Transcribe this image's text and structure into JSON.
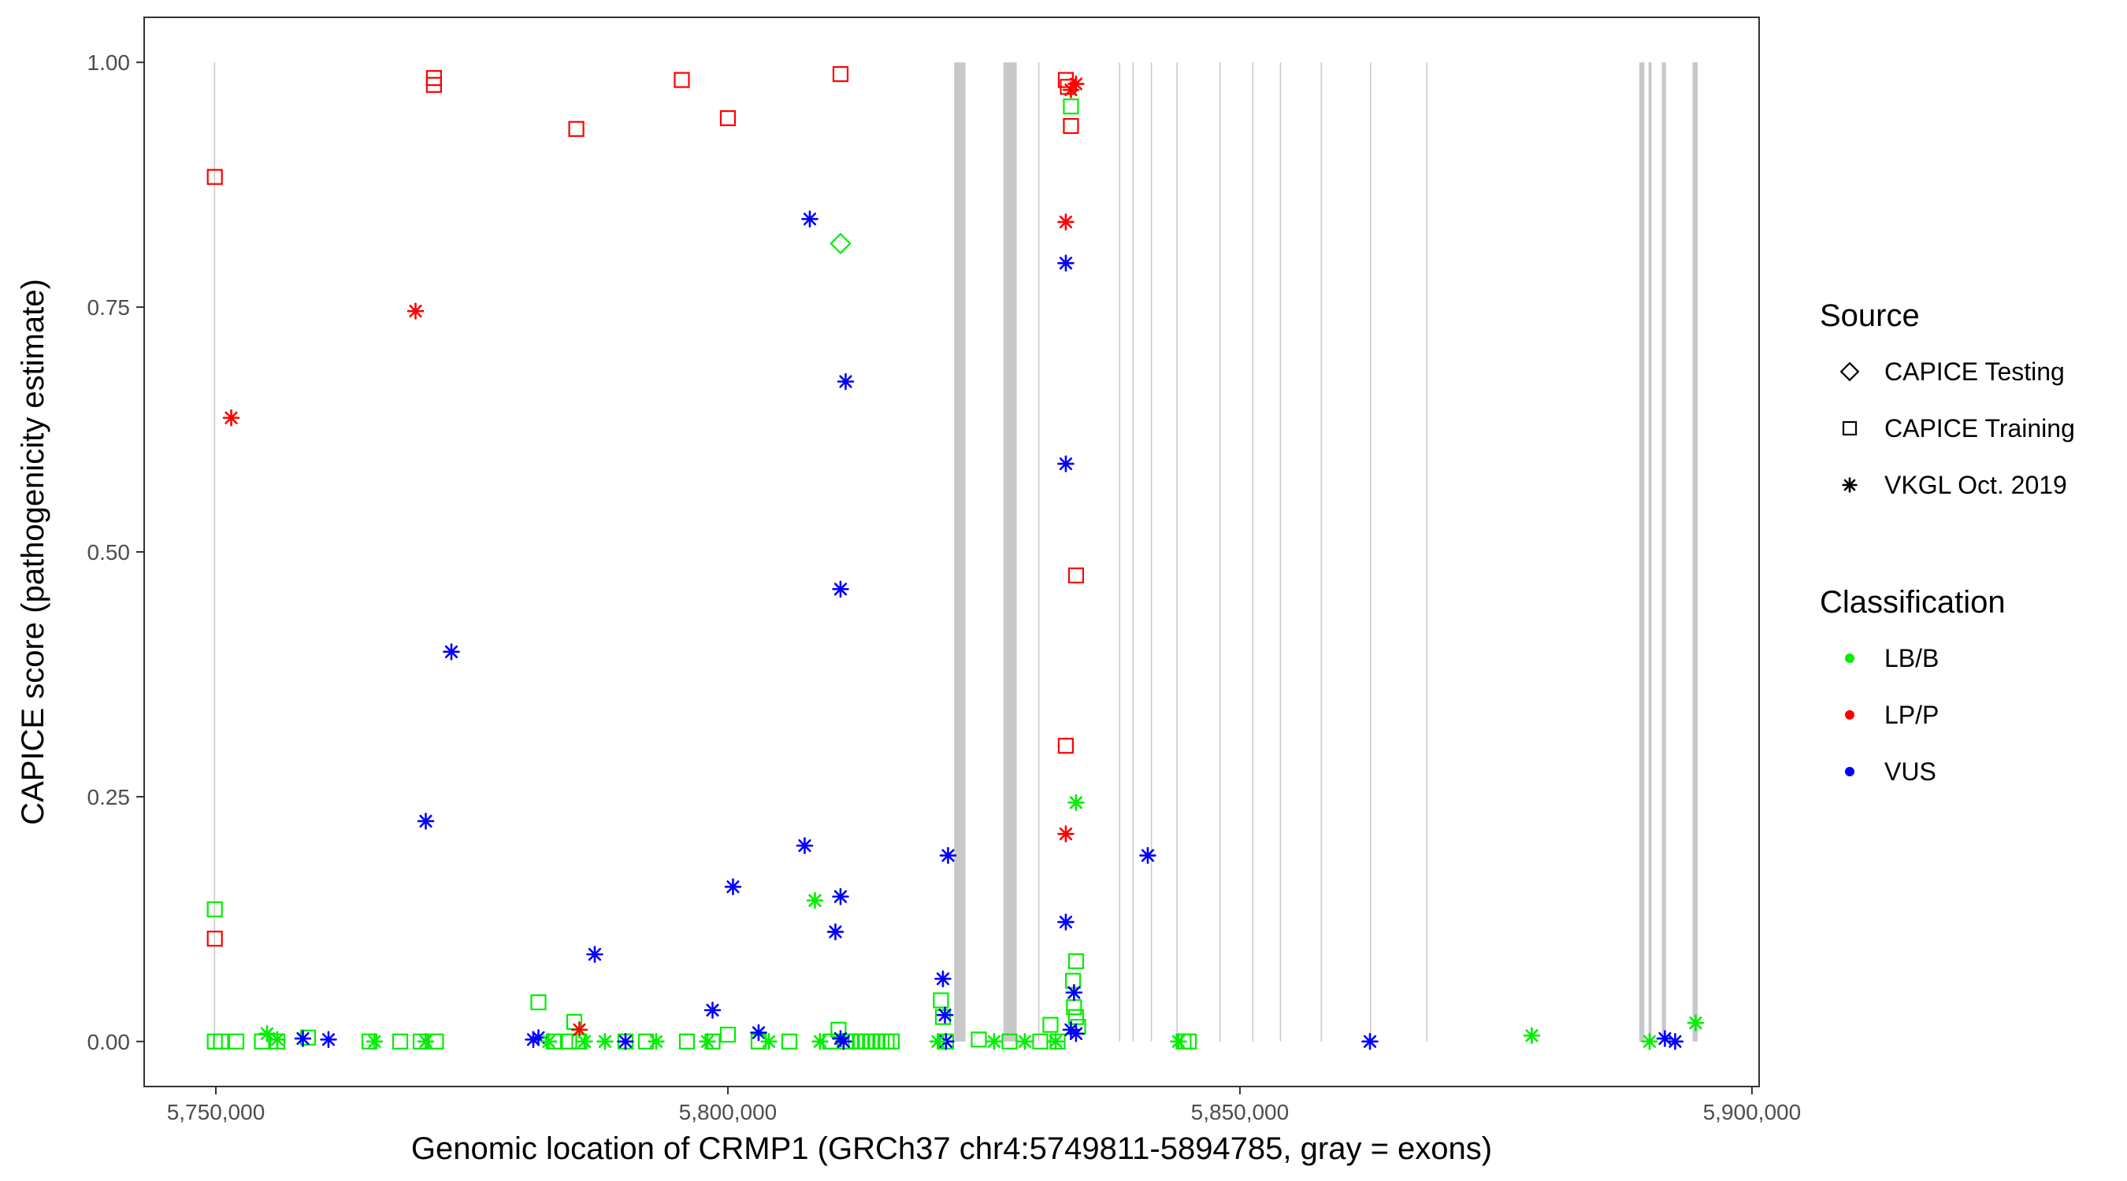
{
  "chart_data": {
    "type": "scatter",
    "title": "",
    "xlabel": "Genomic location of CRMP1 (GRCh37 chr4:5749811-5894785, gray = exons)",
    "ylabel": "CAPICE score (pathogenicity estimate)",
    "xlim": [
      5743000,
      5900700
    ],
    "ylim": [
      -0.046,
      1.046
    ],
    "x_ticks": [
      5750000,
      5800000,
      5850000,
      5900000
    ],
    "x_tick_labels": [
      "5,750,000",
      "5,800,000",
      "5,850,000",
      "5,900,000"
    ],
    "y_ticks": [
      0,
      0.25,
      0.5,
      0.75,
      1.0
    ],
    "y_tick_labels": [
      "0.00",
      "0.25",
      "0.50",
      "0.75",
      "1.00"
    ],
    "grid": false,
    "exons": [
      [
        5749811,
        5749900
      ],
      [
        5822100,
        5823200
      ],
      [
        5826900,
        5828200
      ],
      [
        5830300,
        5830400
      ],
      [
        5838200,
        5838300
      ],
      [
        5839500,
        5839600
      ],
      [
        5841300,
        5841400
      ],
      [
        5843800,
        5843900
      ],
      [
        5848000,
        5848100
      ],
      [
        5851200,
        5851300
      ],
      [
        5853900,
        5854000
      ],
      [
        5857900,
        5858000
      ],
      [
        5862700,
        5862800
      ],
      [
        5868200,
        5868300
      ],
      [
        5889000,
        5889500
      ],
      [
        5889900,
        5890200
      ],
      [
        5891200,
        5891600
      ],
      [
        5894200,
        5894700
      ]
    ],
    "legend": {
      "position": "right",
      "source_title": "Source",
      "source_entries": [
        {
          "label": "CAPICE Testing",
          "shape": "diamond"
        },
        {
          "label": "CAPICE Training",
          "shape": "square"
        },
        {
          "label": "VKGL Oct. 2019",
          "shape": "asterisk"
        }
      ],
      "class_title": "Classification",
      "class_entries": [
        {
          "label": "LB/B",
          "color": "#00ee00"
        },
        {
          "label": "LP/P",
          "color": "#ff0000"
        },
        {
          "label": "VUS",
          "color": "#0000ff"
        }
      ]
    },
    "colors": {
      "LB/B": "#00ee00",
      "LP/P": "#ff0000",
      "VUS": "#0000ff"
    },
    "series": [
      {
        "source": "CAPICE Testing",
        "classification": "LB/B",
        "shape": "diamond",
        "points": [
          [
            5811000,
            0.815
          ]
        ]
      },
      {
        "source": "CAPICE Training",
        "classification": "LP/P",
        "shape": "square",
        "points": [
          [
            5749900,
            0.883
          ],
          [
            5749900,
            0.105
          ],
          [
            5771300,
            0.984
          ],
          [
            5771300,
            0.977
          ],
          [
            5785200,
            0.932
          ],
          [
            5795500,
            0.982
          ],
          [
            5800000,
            0.943
          ],
          [
            5811000,
            0.988
          ],
          [
            5833000,
            0.982
          ],
          [
            5833200,
            0.975
          ],
          [
            5833500,
            0.935
          ],
          [
            5834000,
            0.476
          ],
          [
            5833000,
            0.302
          ]
        ]
      },
      {
        "source": "CAPICE Training",
        "classification": "LB/B",
        "shape": "square",
        "points": [
          [
            5749900,
            0.135
          ],
          [
            5749900,
            0.0
          ],
          [
            5750500,
            0.0
          ],
          [
            5752000,
            0.0
          ],
          [
            5754500,
            0.0
          ],
          [
            5756000,
            0.0
          ],
          [
            5759000,
            0.004
          ],
          [
            5765000,
            0.0
          ],
          [
            5768000,
            0.0
          ],
          [
            5770000,
            0.0
          ],
          [
            5771500,
            0.0
          ],
          [
            5781500,
            0.04
          ],
          [
            5783000,
            0.0
          ],
          [
            5784500,
            0.0
          ],
          [
            5785000,
            0.02
          ],
          [
            5785500,
            0.0
          ],
          [
            5790000,
            0.0
          ],
          [
            5792000,
            0.0
          ],
          [
            5796000,
            0.0
          ],
          [
            5798500,
            0.0
          ],
          [
            5800000,
            0.007
          ],
          [
            5803000,
            0.0
          ],
          [
            5806000,
            0.0
          ],
          [
            5810000,
            0.0
          ],
          [
            5810800,
            0.012
          ],
          [
            5811500,
            0.0
          ],
          [
            5812000,
            0.0
          ],
          [
            5812500,
            0.0
          ],
          [
            5813000,
            0.0
          ],
          [
            5813500,
            0.0
          ],
          [
            5814000,
            0.0
          ],
          [
            5814500,
            0.0
          ],
          [
            5815000,
            0.0
          ],
          [
            5815500,
            0.0
          ],
          [
            5816000,
            0.0
          ],
          [
            5820800,
            0.042
          ],
          [
            5821000,
            0.025
          ],
          [
            5821300,
            0.0
          ],
          [
            5824500,
            0.002
          ],
          [
            5827500,
            0.0
          ],
          [
            5830500,
            0.0
          ],
          [
            5831500,
            0.017
          ],
          [
            5832200,
            0.0
          ],
          [
            5833500,
            0.955
          ],
          [
            5834000,
            0.082
          ],
          [
            5833700,
            0.062
          ],
          [
            5833800,
            0.035
          ],
          [
            5834000,
            0.025
          ],
          [
            5834200,
            0.015
          ],
          [
            5844500,
            0.0
          ],
          [
            5845000,
            0.0
          ]
        ]
      },
      {
        "source": "VKGL Oct. 2019",
        "classification": "LP/P",
        "shape": "asterisk",
        "points": [
          [
            5751500,
            0.637
          ],
          [
            5769500,
            0.746
          ],
          [
            5785500,
            0.012
          ],
          [
            5833000,
            0.837
          ],
          [
            5833000,
            0.212
          ],
          [
            5833500,
            0.972
          ],
          [
            5834000,
            0.978
          ]
        ]
      },
      {
        "source": "VKGL Oct. 2019",
        "classification": "VUS",
        "shape": "asterisk",
        "points": [
          [
            5808000,
            0.84
          ],
          [
            5811500,
            0.674
          ],
          [
            5833000,
            0.795
          ],
          [
            5833000,
            0.59
          ],
          [
            5773000,
            0.398
          ],
          [
            5811000,
            0.462
          ],
          [
            5770500,
            0.225
          ],
          [
            5807500,
            0.2
          ],
          [
            5800500,
            0.158
          ],
          [
            5821500,
            0.19
          ],
          [
            5841000,
            0.19
          ],
          [
            5811000,
            0.148
          ],
          [
            5833000,
            0.122
          ],
          [
            5810500,
            0.112
          ],
          [
            5787000,
            0.089
          ],
          [
            5821000,
            0.064
          ],
          [
            5833800,
            0.05
          ],
          [
            5798500,
            0.032
          ],
          [
            5821200,
            0.027
          ],
          [
            5758500,
            0.003
          ],
          [
            5761000,
            0.002
          ],
          [
            5781000,
            0.002
          ],
          [
            5781500,
            0.004
          ],
          [
            5790000,
            0.0
          ],
          [
            5803000,
            0.009
          ],
          [
            5811000,
            0.003
          ],
          [
            5811300,
            0.0
          ],
          [
            5821300,
            0.0
          ],
          [
            5833500,
            0.012
          ],
          [
            5834000,
            0.008
          ],
          [
            5862700,
            0.0
          ],
          [
            5891500,
            0.003
          ],
          [
            5892500,
            0.0
          ]
        ]
      },
      {
        "source": "VKGL Oct. 2019",
        "classification": "LB/B",
        "shape": "asterisk",
        "points": [
          [
            5808500,
            0.144
          ],
          [
            5834000,
            0.244
          ],
          [
            5755000,
            0.008
          ],
          [
            5756000,
            0.002
          ],
          [
            5765500,
            0.0
          ],
          [
            5770500,
            0.0
          ],
          [
            5782500,
            0.0
          ],
          [
            5786000,
            0.0
          ],
          [
            5788000,
            0.0
          ],
          [
            5793000,
            0.0
          ],
          [
            5798000,
            0.0
          ],
          [
            5804000,
            0.0
          ],
          [
            5809000,
            0.0
          ],
          [
            5820500,
            0.0
          ],
          [
            5826000,
            0.0
          ],
          [
            5829000,
            0.0
          ],
          [
            5832000,
            0.0
          ],
          [
            5844000,
            0.0
          ],
          [
            5878500,
            0.006
          ],
          [
            5890000,
            0.0
          ],
          [
            5894500,
            0.019
          ]
        ]
      }
    ]
  }
}
